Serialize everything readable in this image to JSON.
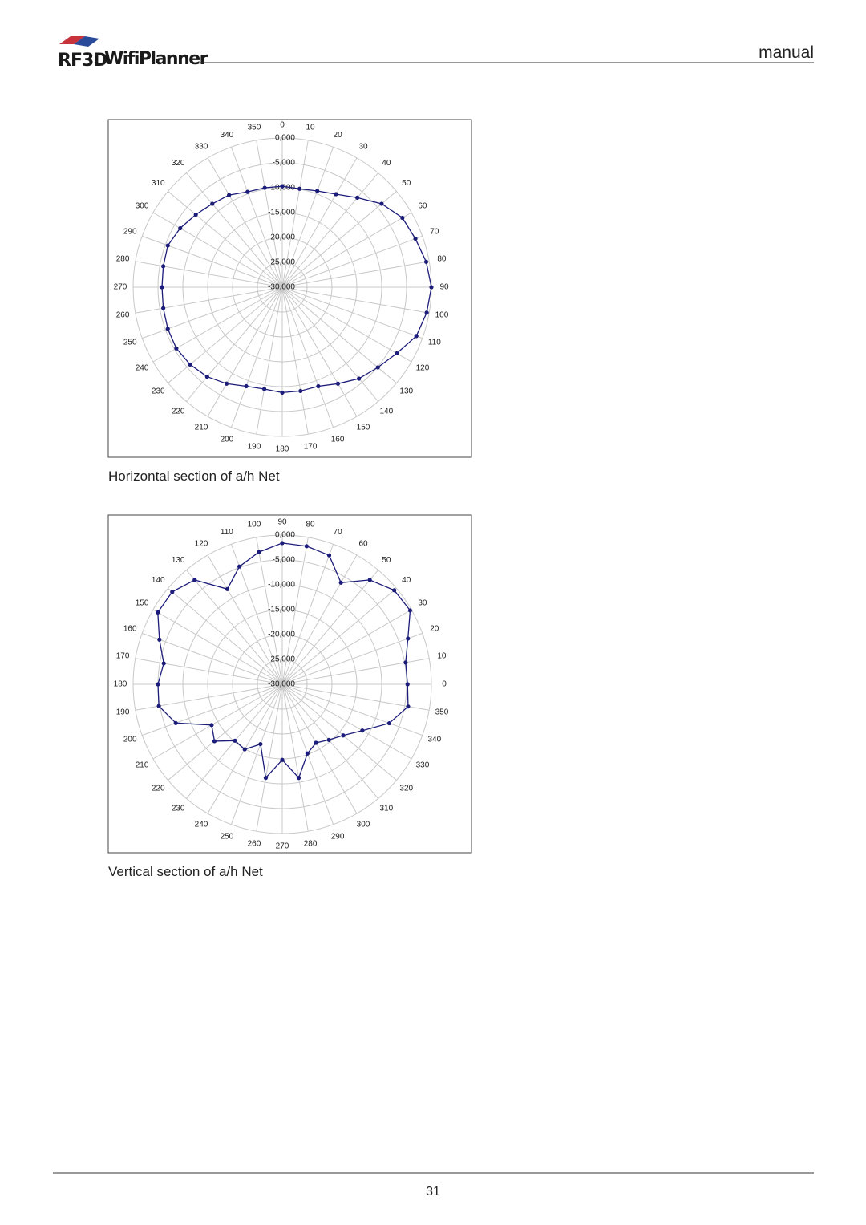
{
  "header": {
    "logo_brand": "RF3D",
    "logo_product": "WifiPlanner",
    "title": "manual"
  },
  "chart_data": [
    {
      "type": "polar",
      "caption": "Horizontal section of a/h Net",
      "theta_zero_location": "N",
      "theta_direction": "clockwise",
      "angles": [
        0,
        10,
        20,
        30,
        40,
        50,
        60,
        70,
        80,
        90,
        100,
        110,
        120,
        130,
        140,
        150,
        160,
        170,
        180,
        190,
        200,
        210,
        220,
        230,
        240,
        250,
        260,
        270,
        280,
        290,
        300,
        310,
        320,
        330,
        340,
        350
      ],
      "rlim": [
        -30,
        0
      ],
      "rticks": [
        {
          "value": -30,
          "label": "-30,000"
        },
        {
          "value": -25,
          "label": "-25,000"
        },
        {
          "value": -20,
          "label": "-20,000"
        },
        {
          "value": -15,
          "label": "-15,000"
        },
        {
          "value": -10,
          "label": "-10,000"
        },
        {
          "value": -5,
          "label": "-5,000"
        },
        {
          "value": 0,
          "label": "0,000"
        }
      ],
      "grid": true,
      "color": "#1c1c7a",
      "values": [
        -9.7,
        -9.9,
        -9.4,
        -8.4,
        -6.5,
        -3.9,
        -2.1,
        -1.5,
        -0.6,
        0,
        -0.5,
        -1.3,
        -3.4,
        -4.9,
        -6,
        -7.6,
        -8.8,
        -8.8,
        -8.8,
        -9.2,
        -8.8,
        -7.6,
        -6.5,
        -5.8,
        -5.4,
        -5.5,
        -5.7,
        -5.8,
        -5.7,
        -5.5,
        -6.3,
        -7.3,
        -8.1,
        -8.6,
        -9.6,
        -9.7
      ]
    },
    {
      "type": "polar",
      "caption": "Vertical section of a/h Net",
      "theta_zero_location": "E",
      "theta_direction": "counterclockwise",
      "angles": [
        0,
        10,
        20,
        30,
        40,
        50,
        60,
        70,
        80,
        90,
        100,
        110,
        120,
        130,
        140,
        150,
        160,
        170,
        180,
        190,
        200,
        210,
        220,
        230,
        240,
        250,
        260,
        270,
        280,
        290,
        300,
        310,
        320,
        330,
        340,
        350
      ],
      "rlim": [
        -30,
        0
      ],
      "rticks": [
        {
          "value": -30,
          "label": "-30,000"
        },
        {
          "value": -25,
          "label": "-25,000"
        },
        {
          "value": -20,
          "label": "-20,000"
        },
        {
          "value": -15,
          "label": "-15,000"
        },
        {
          "value": -10,
          "label": "-10,000"
        },
        {
          "value": -5,
          "label": "-5,000"
        },
        {
          "value": 0,
          "label": "0,000"
        }
      ],
      "grid": true,
      "color": "#1c1c7a",
      "values": [
        -4.8,
        -4.8,
        -3.1,
        -0.3,
        -0.6,
        -2.6,
        -6.4,
        -2.4,
        -1.8,
        -1.6,
        -3,
        -4.8,
        -7.9,
        -2.6,
        -1.1,
        -1.1,
        -3.7,
        -5.8,
        -5,
        -4.8,
        -7.2,
        -13.6,
        -12.2,
        -15.2,
        -14.9,
        -17.2,
        -10.9,
        -14.8,
        -10.9,
        -15.2,
        -16.4,
        -15.4,
        -14,
        -11.4,
        -7.1,
        -4.3
      ]
    }
  ],
  "footer": {
    "page_number": "31"
  }
}
